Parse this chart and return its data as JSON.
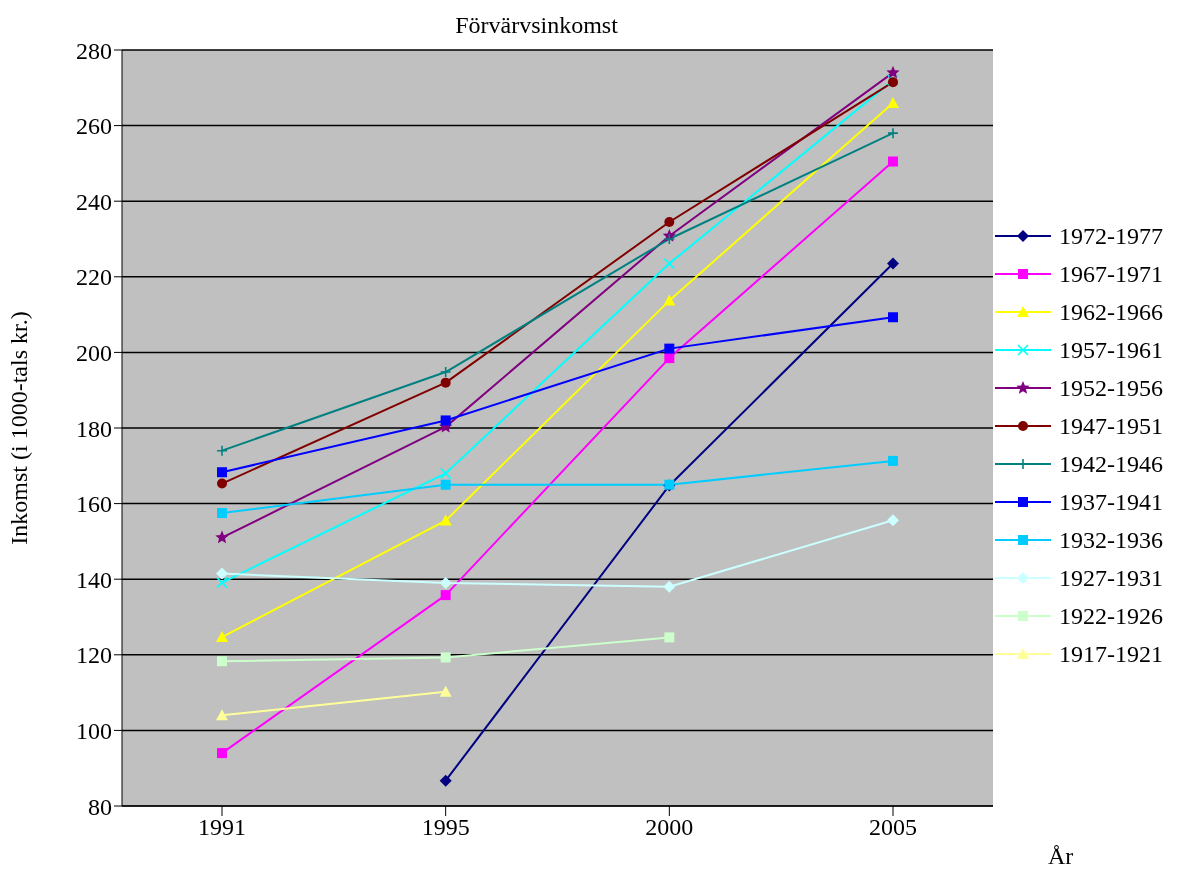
{
  "chart_data": {
    "type": "line",
    "title": "Förvärvsinkomst",
    "xlabel": "År",
    "ylabel": "Inkomst (i 1000-tals kr.)",
    "categories": [
      "1991",
      "1995",
      "2000",
      "2005"
    ],
    "ylim": [
      80,
      280
    ],
    "yticks": [
      80,
      100,
      120,
      140,
      160,
      180,
      200,
      220,
      240,
      260,
      280
    ],
    "grid": "y",
    "legend": "right",
    "series": [
      {
        "name": "1972-1977",
        "color": "#000080",
        "marker": "diamond",
        "values": [
          null,
          86.7,
          164.8,
          223.5
        ]
      },
      {
        "name": "1967-1971",
        "color": "#ff00ff",
        "marker": "square",
        "values": [
          94,
          135.8,
          198.5,
          250.5
        ]
      },
      {
        "name": "1962-1966",
        "color": "#ffff00",
        "marker": "triangle",
        "values": [
          124.7,
          155.5,
          213.7,
          266
        ]
      },
      {
        "name": "1957-1961",
        "color": "#00ffff",
        "marker": "cross",
        "values": [
          139.1,
          168,
          223.5,
          272
        ]
      },
      {
        "name": "1952-1956",
        "color": "#800080",
        "marker": "star",
        "values": [
          151,
          180.3,
          230.8,
          274
        ]
      },
      {
        "name": "1947-1951",
        "color": "#800000",
        "marker": "circle",
        "values": [
          165.3,
          192,
          234.5,
          271.5
        ]
      },
      {
        "name": "1942-1946",
        "color": "#008080",
        "marker": "plus",
        "values": [
          174,
          194.8,
          230,
          258
        ]
      },
      {
        "name": "1937-1941",
        "color": "#0000ff",
        "marker": "square",
        "values": [
          168.3,
          182,
          201,
          209.3
        ]
      },
      {
        "name": "1932-1936",
        "color": "#00ccff",
        "marker": "square",
        "values": [
          157.5,
          165,
          165,
          171.3
        ]
      },
      {
        "name": "1927-1931",
        "color": "#ccffff",
        "marker": "diamond",
        "values": [
          141.5,
          139,
          138,
          155.6
        ]
      },
      {
        "name": "1922-1926",
        "color": "#ccffcc",
        "marker": "square",
        "values": [
          118.3,
          119.3,
          124.6,
          null
        ]
      },
      {
        "name": "1917-1921",
        "color": "#ffff99",
        "marker": "triangle",
        "values": [
          104,
          110.2,
          null,
          null
        ]
      }
    ]
  }
}
